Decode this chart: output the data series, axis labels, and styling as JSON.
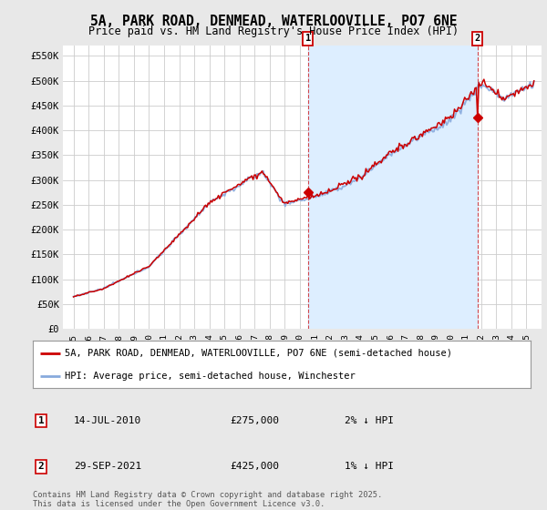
{
  "title": "5A, PARK ROAD, DENMEAD, WATERLOOVILLE, PO7 6NE",
  "subtitle": "Price paid vs. HM Land Registry's House Price Index (HPI)",
  "ylabel_ticks": [
    "£0",
    "£50K",
    "£100K",
    "£150K",
    "£200K",
    "£250K",
    "£300K",
    "£350K",
    "£400K",
    "£450K",
    "£500K",
    "£550K"
  ],
  "ytick_values": [
    0,
    50000,
    100000,
    150000,
    200000,
    250000,
    300000,
    350000,
    400000,
    450000,
    500000,
    550000
  ],
  "ylim": [
    0,
    570000
  ],
  "bg_color": "#e8e8e8",
  "plot_bg_color": "#ffffff",
  "grid_color": "#cccccc",
  "line1_color": "#cc0000",
  "line2_color": "#88aadd",
  "shade_color": "#ddeeff",
  "legend1_label": "5A, PARK ROAD, DENMEAD, WATERLOOVILLE, PO7 6NE (semi-detached house)",
  "legend2_label": "HPI: Average price, semi-detached house, Winchester",
  "sale1_date": "14-JUL-2010",
  "sale1_price": "£275,000",
  "sale1_pct": "2% ↓ HPI",
  "sale1_year": 2010.534,
  "sale1_value": 275000,
  "sale2_date": "29-SEP-2021",
  "sale2_price": "£425,000",
  "sale2_pct": "1% ↓ HPI",
  "sale2_year": 2021.745,
  "sale2_value": 425000,
  "footnote": "Contains HM Land Registry data © Crown copyright and database right 2025.\nThis data is licensed under the Open Government Licence v3.0.",
  "xstart": 1995,
  "xend": 2025
}
